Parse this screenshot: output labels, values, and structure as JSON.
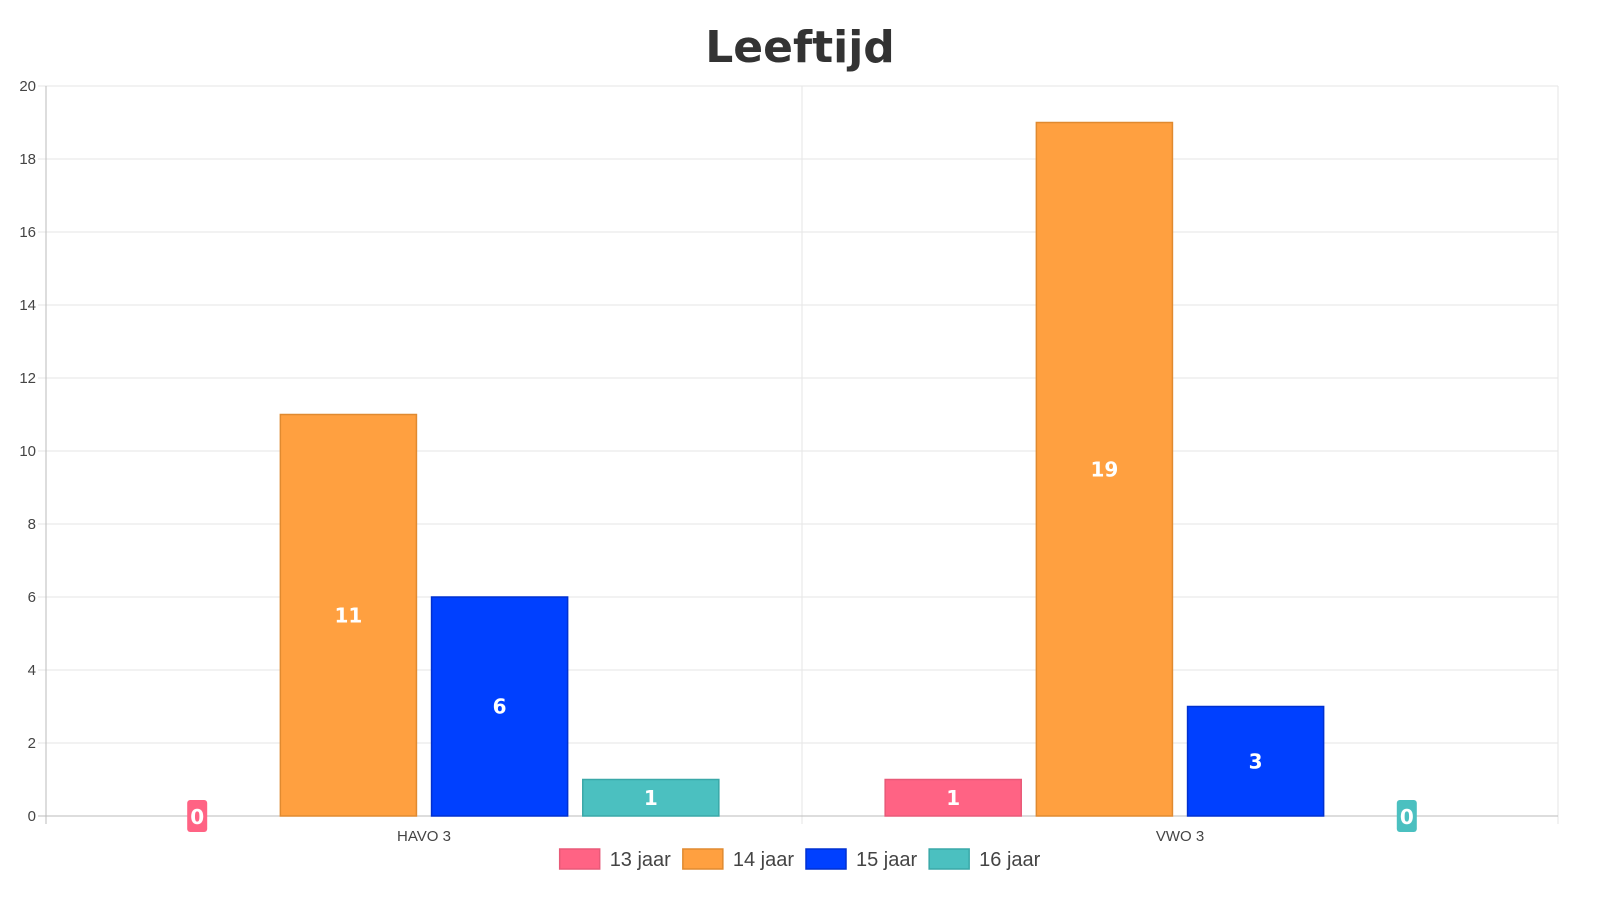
{
  "chart_data": {
    "type": "bar",
    "title": "Leeftijd",
    "xlabel": "",
    "ylabel": "",
    "categories": [
      "HAVO 3",
      "VWO 3"
    ],
    "ylim": [
      0,
      20
    ],
    "yticks": [
      0,
      2,
      4,
      6,
      8,
      10,
      12,
      14,
      16,
      18,
      20
    ],
    "grid": true,
    "legend_position": "bottom",
    "series": [
      {
        "name": "13 jaar",
        "color": "#ff6384",
        "border": "#e85a78",
        "values": [
          0,
          1
        ]
      },
      {
        "name": "14 jaar",
        "color": "#ffa040",
        "border": "#e08a30",
        "values": [
          11,
          19
        ]
      },
      {
        "name": "15 jaar",
        "color": "#0040ff",
        "border": "#0030d0",
        "values": [
          6,
          3
        ]
      },
      {
        "name": "16 jaar",
        "color": "#4bc0c0",
        "border": "#3aa8a8",
        "values": [
          1,
          0
        ]
      }
    ]
  }
}
